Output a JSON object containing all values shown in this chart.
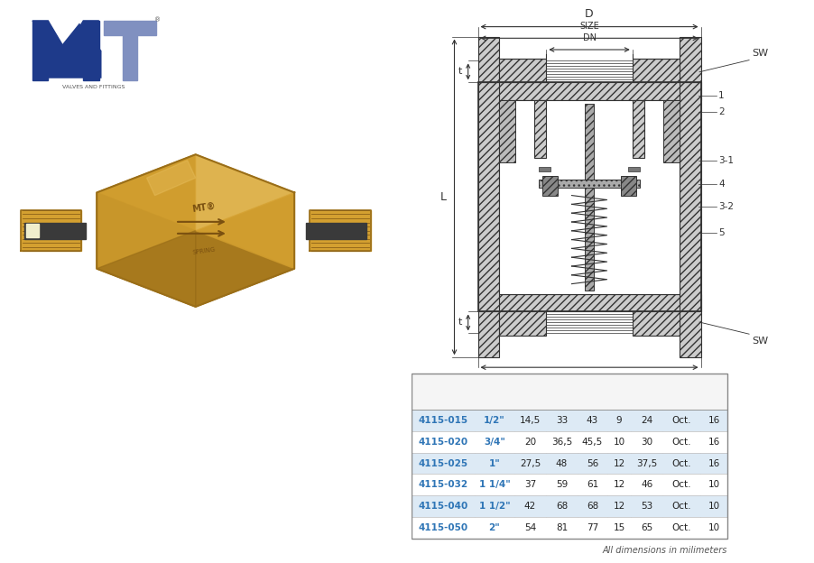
{
  "rows": [
    [
      "4115-015",
      "1/2\"",
      "14,5",
      "33",
      "43",
      "9",
      "24",
      "Oct.",
      "16"
    ],
    [
      "4115-020",
      "3/4\"",
      "20",
      "36,5",
      "45,5",
      "10",
      "30",
      "Oct.",
      "16"
    ],
    [
      "4115-025",
      "1\"",
      "27,5",
      "48",
      "56",
      "12",
      "37,5",
      "Oct.",
      "16"
    ],
    [
      "4115-032",
      "1 1/4\"",
      "37",
      "59",
      "61",
      "12",
      "46",
      "Oct.",
      "10"
    ],
    [
      "4115-040",
      "1 1/2\"",
      "42",
      "68",
      "68",
      "12",
      "53",
      "Oct.",
      "10"
    ],
    [
      "4115-050",
      "2\"",
      "54",
      "81",
      "77",
      "15",
      "65",
      "Oct.",
      "10"
    ]
  ],
  "highlight_rows": [
    0,
    2,
    4
  ],
  "highlight_color": "#ddeaf5",
  "normal_color": "#ffffff",
  "code_color": "#2e75b6",
  "size_color": "#2e75b6",
  "profile_color": "#2e75b6",
  "text_color": "#222222",
  "footnote": "All dimensions in milimeters",
  "bg_color": "#ffffff",
  "logo_dark": "#1e3a8a",
  "logo_light": "#8090c0",
  "dc": "#333333"
}
